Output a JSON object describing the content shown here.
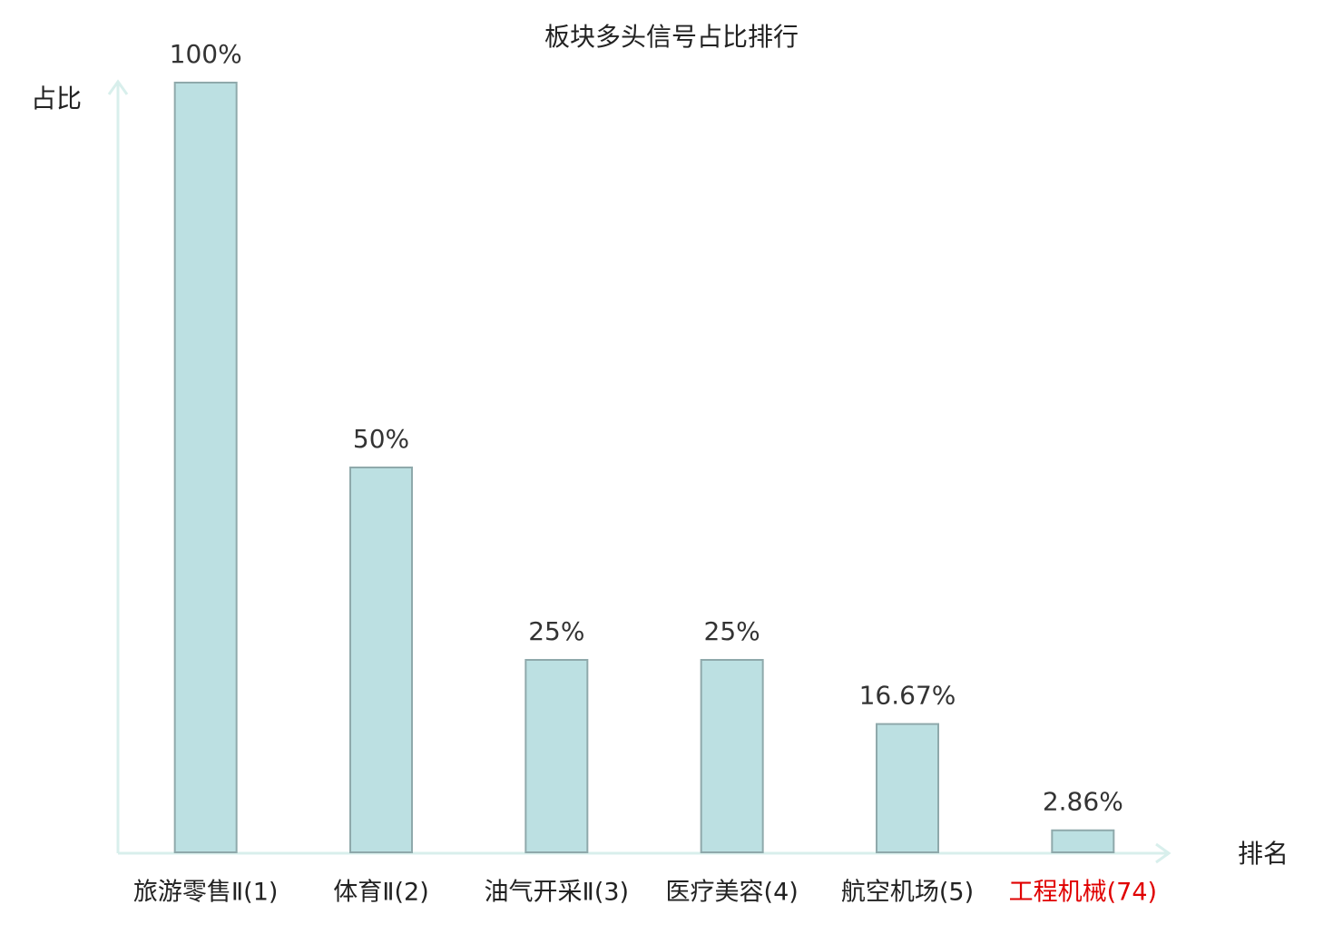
{
  "chart_data": {
    "type": "bar",
    "title": "板块多头信号占比排行",
    "y_label": "占比",
    "x_label": "排名",
    "categories": [
      "旅游零售Ⅱ(1)",
      "体育Ⅱ(2)",
      "油气开采Ⅱ(3)",
      "医疗美容(4)",
      "航空机场(5)",
      "工程机械(74)"
    ],
    "values": [
      100,
      50,
      25,
      25,
      16.67,
      2.86
    ],
    "value_labels": [
      "100%",
      "50%",
      "25%",
      "25%",
      "16.67%",
      "2.86%"
    ],
    "color": "#bce0e2",
    "label_colors": [
      "#222222",
      "#222222",
      "#222222",
      "#222222",
      "#222222",
      "#e00000"
    ],
    "ylim": [
      0,
      100
    ],
    "grid": false
  }
}
